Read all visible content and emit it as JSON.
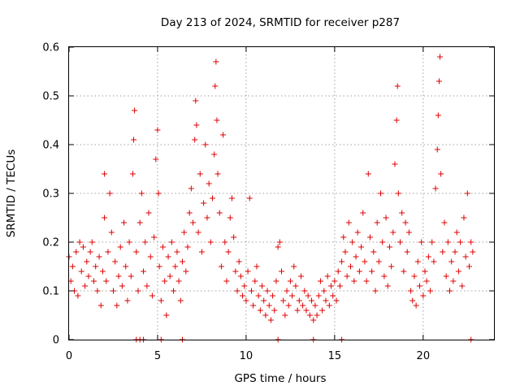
{
  "chart_data": {
    "type": "scatter",
    "title": "Day 213 of 2024, SRMTID for receiver p287",
    "xlabel": "GPS time / hours",
    "ylabel": "SRMTID / TECUs",
    "xlim": [
      0,
      24
    ],
    "ylim": [
      0,
      0.6
    ],
    "x_ticks": [
      0,
      5,
      10,
      15,
      20
    ],
    "x_tick_labels": [
      "0",
      "5",
      "10",
      "15",
      "20"
    ],
    "y_ticks": [
      0,
      0.1,
      0.2,
      0.3,
      0.4,
      0.5,
      0.6
    ],
    "y_tick_labels": [
      "0",
      "0.1",
      "0.2",
      "0.3",
      "0.4",
      "0.5",
      "0.6"
    ],
    "grid": true,
    "marker": "plus",
    "color": "#e00000",
    "series": [
      {
        "name": "SRMTID",
        "points": [
          [
            0.0,
            0.17
          ],
          [
            0.1,
            0.12
          ],
          [
            0.2,
            0.15
          ],
          [
            0.3,
            0.1
          ],
          [
            0.4,
            0.18
          ],
          [
            0.5,
            0.09
          ],
          [
            0.6,
            0.2
          ],
          [
            0.7,
            0.14
          ],
          [
            0.8,
            0.19
          ],
          [
            0.9,
            0.11
          ],
          [
            1.0,
            0.16
          ],
          [
            1.1,
            0.13
          ],
          [
            1.2,
            0.18
          ],
          [
            1.3,
            0.2
          ],
          [
            1.4,
            0.12
          ],
          [
            1.5,
            0.15
          ],
          [
            1.6,
            0.1
          ],
          [
            1.7,
            0.17
          ],
          [
            1.8,
            0.07
          ],
          [
            1.9,
            0.14
          ],
          [
            2.0,
            0.25
          ],
          [
            2.0,
            0.34
          ],
          [
            2.1,
            0.12
          ],
          [
            2.2,
            0.18
          ],
          [
            2.3,
            0.3
          ],
          [
            2.4,
            0.22
          ],
          [
            2.5,
            0.1
          ],
          [
            2.6,
            0.16
          ],
          [
            2.7,
            0.07
          ],
          [
            2.8,
            0.13
          ],
          [
            2.9,
            0.19
          ],
          [
            3.0,
            0.11
          ],
          [
            3.1,
            0.24
          ],
          [
            3.2,
            0.15
          ],
          [
            3.3,
            0.08
          ],
          [
            3.4,
            0.2
          ],
          [
            3.5,
            0.13
          ],
          [
            3.6,
            0.34
          ],
          [
            3.65,
            0.41
          ],
          [
            3.7,
            0.47
          ],
          [
            3.8,
            0.18
          ],
          [
            3.9,
            0.1
          ],
          [
            4.0,
            0.24
          ],
          [
            4.1,
            0.3
          ],
          [
            4.2,
            0.14
          ],
          [
            4.3,
            0.2
          ],
          [
            4.4,
            0.11
          ],
          [
            4.5,
            0.26
          ],
          [
            4.6,
            0.17
          ],
          [
            4.7,
            0.09
          ],
          [
            4.8,
            0.21
          ],
          [
            4.9,
            0.37
          ],
          [
            5.0,
            0.43
          ],
          [
            5.05,
            0.3
          ],
          [
            5.1,
            0.15
          ],
          [
            5.2,
            0.08
          ],
          [
            5.3,
            0.19
          ],
          [
            5.4,
            0.12
          ],
          [
            5.5,
            0.05
          ],
          [
            5.6,
            0.17
          ],
          [
            5.7,
            0.13
          ],
          [
            5.8,
            0.2
          ],
          [
            5.9,
            0.1
          ],
          [
            6.0,
            0.15
          ],
          [
            6.1,
            0.18
          ],
          [
            6.2,
            0.12
          ],
          [
            6.3,
            0.08
          ],
          [
            6.4,
            0.16
          ],
          [
            6.5,
            0.22
          ],
          [
            6.6,
            0.14
          ],
          [
            6.7,
            0.19
          ],
          [
            6.8,
            0.26
          ],
          [
            6.9,
            0.31
          ],
          [
            7.0,
            0.24
          ],
          [
            7.1,
            0.41
          ],
          [
            7.15,
            0.49
          ],
          [
            7.2,
            0.44
          ],
          [
            7.3,
            0.22
          ],
          [
            7.4,
            0.34
          ],
          [
            7.5,
            0.18
          ],
          [
            7.6,
            0.28
          ],
          [
            7.7,
            0.4
          ],
          [
            7.8,
            0.25
          ],
          [
            7.9,
            0.32
          ],
          [
            8.0,
            0.2
          ],
          [
            8.1,
            0.29
          ],
          [
            8.2,
            0.38
          ],
          [
            8.25,
            0.52
          ],
          [
            8.3,
            0.57
          ],
          [
            8.35,
            0.45
          ],
          [
            8.4,
            0.34
          ],
          [
            8.5,
            0.26
          ],
          [
            8.6,
            0.15
          ],
          [
            8.7,
            0.42
          ],
          [
            8.8,
            0.2
          ],
          [
            8.9,
            0.12
          ],
          [
            9.0,
            0.18
          ],
          [
            9.1,
            0.25
          ],
          [
            9.2,
            0.29
          ],
          [
            9.3,
            0.21
          ],
          [
            9.4,
            0.14
          ],
          [
            9.5,
            0.1
          ],
          [
            9.6,
            0.16
          ],
          [
            9.7,
            0.13
          ],
          [
            9.8,
            0.09
          ],
          [
            9.9,
            0.11
          ],
          [
            10.0,
            0.08
          ],
          [
            10.1,
            0.14
          ],
          [
            10.2,
            0.29
          ],
          [
            10.3,
            0.1
          ],
          [
            10.4,
            0.07
          ],
          [
            10.5,
            0.12
          ],
          [
            10.6,
            0.15
          ],
          [
            10.7,
            0.09
          ],
          [
            10.8,
            0.06
          ],
          [
            10.9,
            0.11
          ],
          [
            11.0,
            0.08
          ],
          [
            11.1,
            0.05
          ],
          [
            11.2,
            0.1
          ],
          [
            11.3,
            0.07
          ],
          [
            11.4,
            0.04
          ],
          [
            11.5,
            0.09
          ],
          [
            11.6,
            0.06
          ],
          [
            11.7,
            0.12
          ],
          [
            11.8,
            0.19
          ],
          [
            11.9,
            0.2
          ],
          [
            12.0,
            0.14
          ],
          [
            12.1,
            0.08
          ],
          [
            12.2,
            0.05
          ],
          [
            12.3,
            0.1
          ],
          [
            12.4,
            0.07
          ],
          [
            12.5,
            0.12
          ],
          [
            12.6,
            0.09
          ],
          [
            12.7,
            0.15
          ],
          [
            12.8,
            0.11
          ],
          [
            12.9,
            0.06
          ],
          [
            13.0,
            0.08
          ],
          [
            13.1,
            0.13
          ],
          [
            13.2,
            0.07
          ],
          [
            13.3,
            0.1
          ],
          [
            13.4,
            0.06
          ],
          [
            13.5,
            0.09
          ],
          [
            13.6,
            0.05
          ],
          [
            13.7,
            0.08
          ],
          [
            13.8,
            0.04
          ],
          [
            13.9,
            0.07
          ],
          [
            14.0,
            0.05
          ],
          [
            14.1,
            0.09
          ],
          [
            14.2,
            0.12
          ],
          [
            14.3,
            0.06
          ],
          [
            14.4,
            0.1
          ],
          [
            14.5,
            0.08
          ],
          [
            14.6,
            0.13
          ],
          [
            14.7,
            0.07
          ],
          [
            14.8,
            0.11
          ],
          [
            14.9,
            0.09
          ],
          [
            15.0,
            0.12
          ],
          [
            15.1,
            0.08
          ],
          [
            15.2,
            0.14
          ],
          [
            15.3,
            0.11
          ],
          [
            15.4,
            0.16
          ],
          [
            15.5,
            0.21
          ],
          [
            15.6,
            0.18
          ],
          [
            15.7,
            0.13
          ],
          [
            15.8,
            0.24
          ],
          [
            15.9,
            0.15
          ],
          [
            16.0,
            0.2
          ],
          [
            16.1,
            0.12
          ],
          [
            16.2,
            0.17
          ],
          [
            16.3,
            0.22
          ],
          [
            16.4,
            0.14
          ],
          [
            16.5,
            0.19
          ],
          [
            16.6,
            0.26
          ],
          [
            16.7,
            0.16
          ],
          [
            16.8,
            0.12
          ],
          [
            16.9,
            0.34
          ],
          [
            17.0,
            0.21
          ],
          [
            17.1,
            0.14
          ],
          [
            17.2,
            0.18
          ],
          [
            17.3,
            0.1
          ],
          [
            17.4,
            0.24
          ],
          [
            17.5,
            0.16
          ],
          [
            17.6,
            0.3
          ],
          [
            17.7,
            0.2
          ],
          [
            17.8,
            0.13
          ],
          [
            17.9,
            0.25
          ],
          [
            18.0,
            0.11
          ],
          [
            18.1,
            0.19
          ],
          [
            18.2,
            0.15
          ],
          [
            18.3,
            0.22
          ],
          [
            18.4,
            0.36
          ],
          [
            18.5,
            0.45
          ],
          [
            18.55,
            0.52
          ],
          [
            18.6,
            0.3
          ],
          [
            18.7,
            0.2
          ],
          [
            18.8,
            0.26
          ],
          [
            18.9,
            0.14
          ],
          [
            19.0,
            0.24
          ],
          [
            19.1,
            0.18
          ],
          [
            19.2,
            0.22
          ],
          [
            19.3,
            0.1
          ],
          [
            19.4,
            0.08
          ],
          [
            19.5,
            0.13
          ],
          [
            19.6,
            0.07
          ],
          [
            19.7,
            0.16
          ],
          [
            19.8,
            0.11
          ],
          [
            19.9,
            0.2
          ],
          [
            20.0,
            0.09
          ],
          [
            20.1,
            0.14
          ],
          [
            20.2,
            0.12
          ],
          [
            20.3,
            0.17
          ],
          [
            20.4,
            0.1
          ],
          [
            20.5,
            0.2
          ],
          [
            20.6,
            0.16
          ],
          [
            20.7,
            0.31
          ],
          [
            20.8,
            0.39
          ],
          [
            20.85,
            0.46
          ],
          [
            20.9,
            0.53
          ],
          [
            20.95,
            0.58
          ],
          [
            21.0,
            0.34
          ],
          [
            21.1,
            0.18
          ],
          [
            21.2,
            0.24
          ],
          [
            21.3,
            0.13
          ],
          [
            21.4,
            0.2
          ],
          [
            21.5,
            0.1
          ],
          [
            21.6,
            0.16
          ],
          [
            21.7,
            0.12
          ],
          [
            21.8,
            0.18
          ],
          [
            21.9,
            0.22
          ],
          [
            22.0,
            0.14
          ],
          [
            22.1,
            0.2
          ],
          [
            22.2,
            0.11
          ],
          [
            22.3,
            0.25
          ],
          [
            22.4,
            0.17
          ],
          [
            22.5,
            0.3
          ],
          [
            22.6,
            0.15
          ],
          [
            22.7,
            0.2
          ],
          [
            22.8,
            0.18
          ]
        ]
      }
    ],
    "zero_points_x": [
      3.8,
      4.0,
      4.2,
      5.2,
      6.4,
      11.8,
      13.8,
      15.4,
      22.7
    ]
  }
}
